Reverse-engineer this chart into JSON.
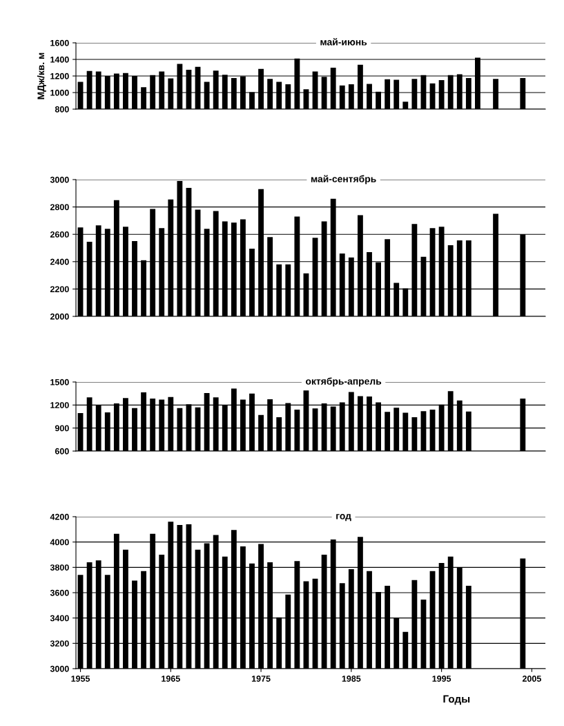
{
  "chart_data": [
    {
      "type": "bar",
      "title": "май-июнь",
      "ylabel": "МДж/кв. м",
      "color": "#000000",
      "grid": "y",
      "tick_labels": "y",
      "xlim": [
        1954.5,
        2006.5
      ],
      "ylim": [
        800,
        1600
      ],
      "yticks": [
        800,
        1000,
        1200,
        1400,
        1600
      ],
      "x": [
        1955,
        1956,
        1957,
        1958,
        1959,
        1960,
        1961,
        1962,
        1963,
        1964,
        1965,
        1966,
        1967,
        1968,
        1969,
        1970,
        1971,
        1972,
        1973,
        1974,
        1975,
        1976,
        1977,
        1978,
        1979,
        1980,
        1981,
        1982,
        1983,
        1984,
        1985,
        1986,
        1987,
        1988,
        1989,
        1990,
        1991,
        1992,
        1993,
        1994,
        1995,
        1996,
        1997,
        1998,
        1999,
        2001,
        2004
      ],
      "values": [
        1130,
        1260,
        1255,
        1200,
        1230,
        1235,
        1200,
        1065,
        1210,
        1255,
        1170,
        1345,
        1275,
        1310,
        1130,
        1265,
        1215,
        1175,
        1195,
        1005,
        1285,
        1165,
        1130,
        1100,
        1410,
        1040,
        1255,
        1190,
        1300,
        1085,
        1100,
        1335,
        1105,
        1010,
        1160,
        1155,
        890,
        1165,
        1210,
        1110,
        1150,
        1210,
        1220,
        1175,
        1420,
        1165,
        1175
      ]
    },
    {
      "type": "bar",
      "title": "май-сентябрь",
      "color": "#000000",
      "grid": "y",
      "tick_labels": "y",
      "xlim": [
        1954.5,
        2006.5
      ],
      "ylim": [
        2000,
        3000
      ],
      "yticks": [
        2000,
        2200,
        2400,
        2600,
        2800,
        3000
      ],
      "x": [
        1955,
        1956,
        1957,
        1958,
        1959,
        1960,
        1961,
        1962,
        1963,
        1964,
        1965,
        1966,
        1967,
        1968,
        1969,
        1970,
        1971,
        1972,
        1973,
        1974,
        1975,
        1976,
        1977,
        1978,
        1979,
        1980,
        1981,
        1982,
        1983,
        1984,
        1985,
        1986,
        1987,
        1988,
        1989,
        1990,
        1991,
        1992,
        1993,
        1994,
        1995,
        1996,
        1997,
        1998,
        2001,
        2004
      ],
      "values": [
        2650,
        2545,
        2665,
        2640,
        2850,
        2655,
        2550,
        2410,
        2785,
        2645,
        2855,
        2990,
        2940,
        2780,
        2640,
        2770,
        2695,
        2685,
        2710,
        2495,
        2930,
        2580,
        2380,
        2380,
        2730,
        2315,
        2575,
        2695,
        2860,
        2460,
        2430,
        2740,
        2470,
        2395,
        2565,
        2245,
        2205,
        2675,
        2435,
        2645,
        2655,
        2520,
        2555,
        2555,
        2750,
        2600
      ]
    },
    {
      "type": "bar",
      "title": "октябрь-апрель",
      "color": "#000000",
      "grid": "y",
      "tick_labels": "y",
      "xlim": [
        1954.5,
        2006.5
      ],
      "ylim": [
        600,
        1500
      ],
      "yticks": [
        600,
        900,
        1200,
        1500
      ],
      "x": [
        1955,
        1956,
        1957,
        1958,
        1959,
        1960,
        1961,
        1962,
        1963,
        1964,
        1965,
        1966,
        1967,
        1968,
        1969,
        1970,
        1971,
        1972,
        1973,
        1974,
        1975,
        1976,
        1977,
        1978,
        1979,
        1980,
        1981,
        1982,
        1983,
        1984,
        1985,
        1986,
        1987,
        1988,
        1989,
        1990,
        1991,
        1992,
        1993,
        1994,
        1995,
        1996,
        1997,
        1998,
        2004
      ],
      "values": [
        1095,
        1300,
        1195,
        1105,
        1220,
        1290,
        1160,
        1365,
        1285,
        1270,
        1305,
        1160,
        1210,
        1170,
        1355,
        1300,
        1200,
        1415,
        1270,
        1350,
        1070,
        1275,
        1040,
        1225,
        1140,
        1390,
        1155,
        1220,
        1180,
        1235,
        1370,
        1315,
        1310,
        1235,
        1110,
        1165,
        1100,
        1040,
        1120,
        1140,
        1205,
        1380,
        1260,
        1115,
        1285
      ]
    },
    {
      "type": "bar",
      "title": "год",
      "xlabel": "Годы",
      "color": "#000000",
      "grid": "y",
      "xlim": [
        1954.5,
        2006.5
      ],
      "xticks": [
        1955,
        1965,
        1975,
        1985,
        1995,
        2005
      ],
      "ylim": [
        3000,
        4200
      ],
      "yticks": [
        3000,
        3200,
        3400,
        3600,
        3800,
        4000,
        4200
      ],
      "x": [
        1955,
        1956,
        1957,
        1958,
        1959,
        1960,
        1961,
        1962,
        1963,
        1964,
        1965,
        1966,
        1967,
        1968,
        1969,
        1970,
        1971,
        1972,
        1973,
        1974,
        1975,
        1976,
        1977,
        1978,
        1979,
        1980,
        1981,
        1982,
        1983,
        1984,
        1985,
        1986,
        1987,
        1988,
        1989,
        1990,
        1991,
        1992,
        1993,
        1994,
        1995,
        1996,
        1997,
        1998,
        2004
      ],
      "values": [
        3740,
        3840,
        3855,
        3740,
        4065,
        3940,
        3695,
        3770,
        4065,
        3900,
        4160,
        4135,
        4140,
        3940,
        3990,
        4055,
        3885,
        4095,
        3965,
        3830,
        3985,
        3840,
        3405,
        3585,
        3850,
        3690,
        3710,
        3900,
        4020,
        3675,
        3785,
        4040,
        3770,
        3605,
        3655,
        3400,
        3290,
        3700,
        3545,
        3770,
        3835,
        3885,
        3800,
        3655,
        3870
      ]
    }
  ]
}
